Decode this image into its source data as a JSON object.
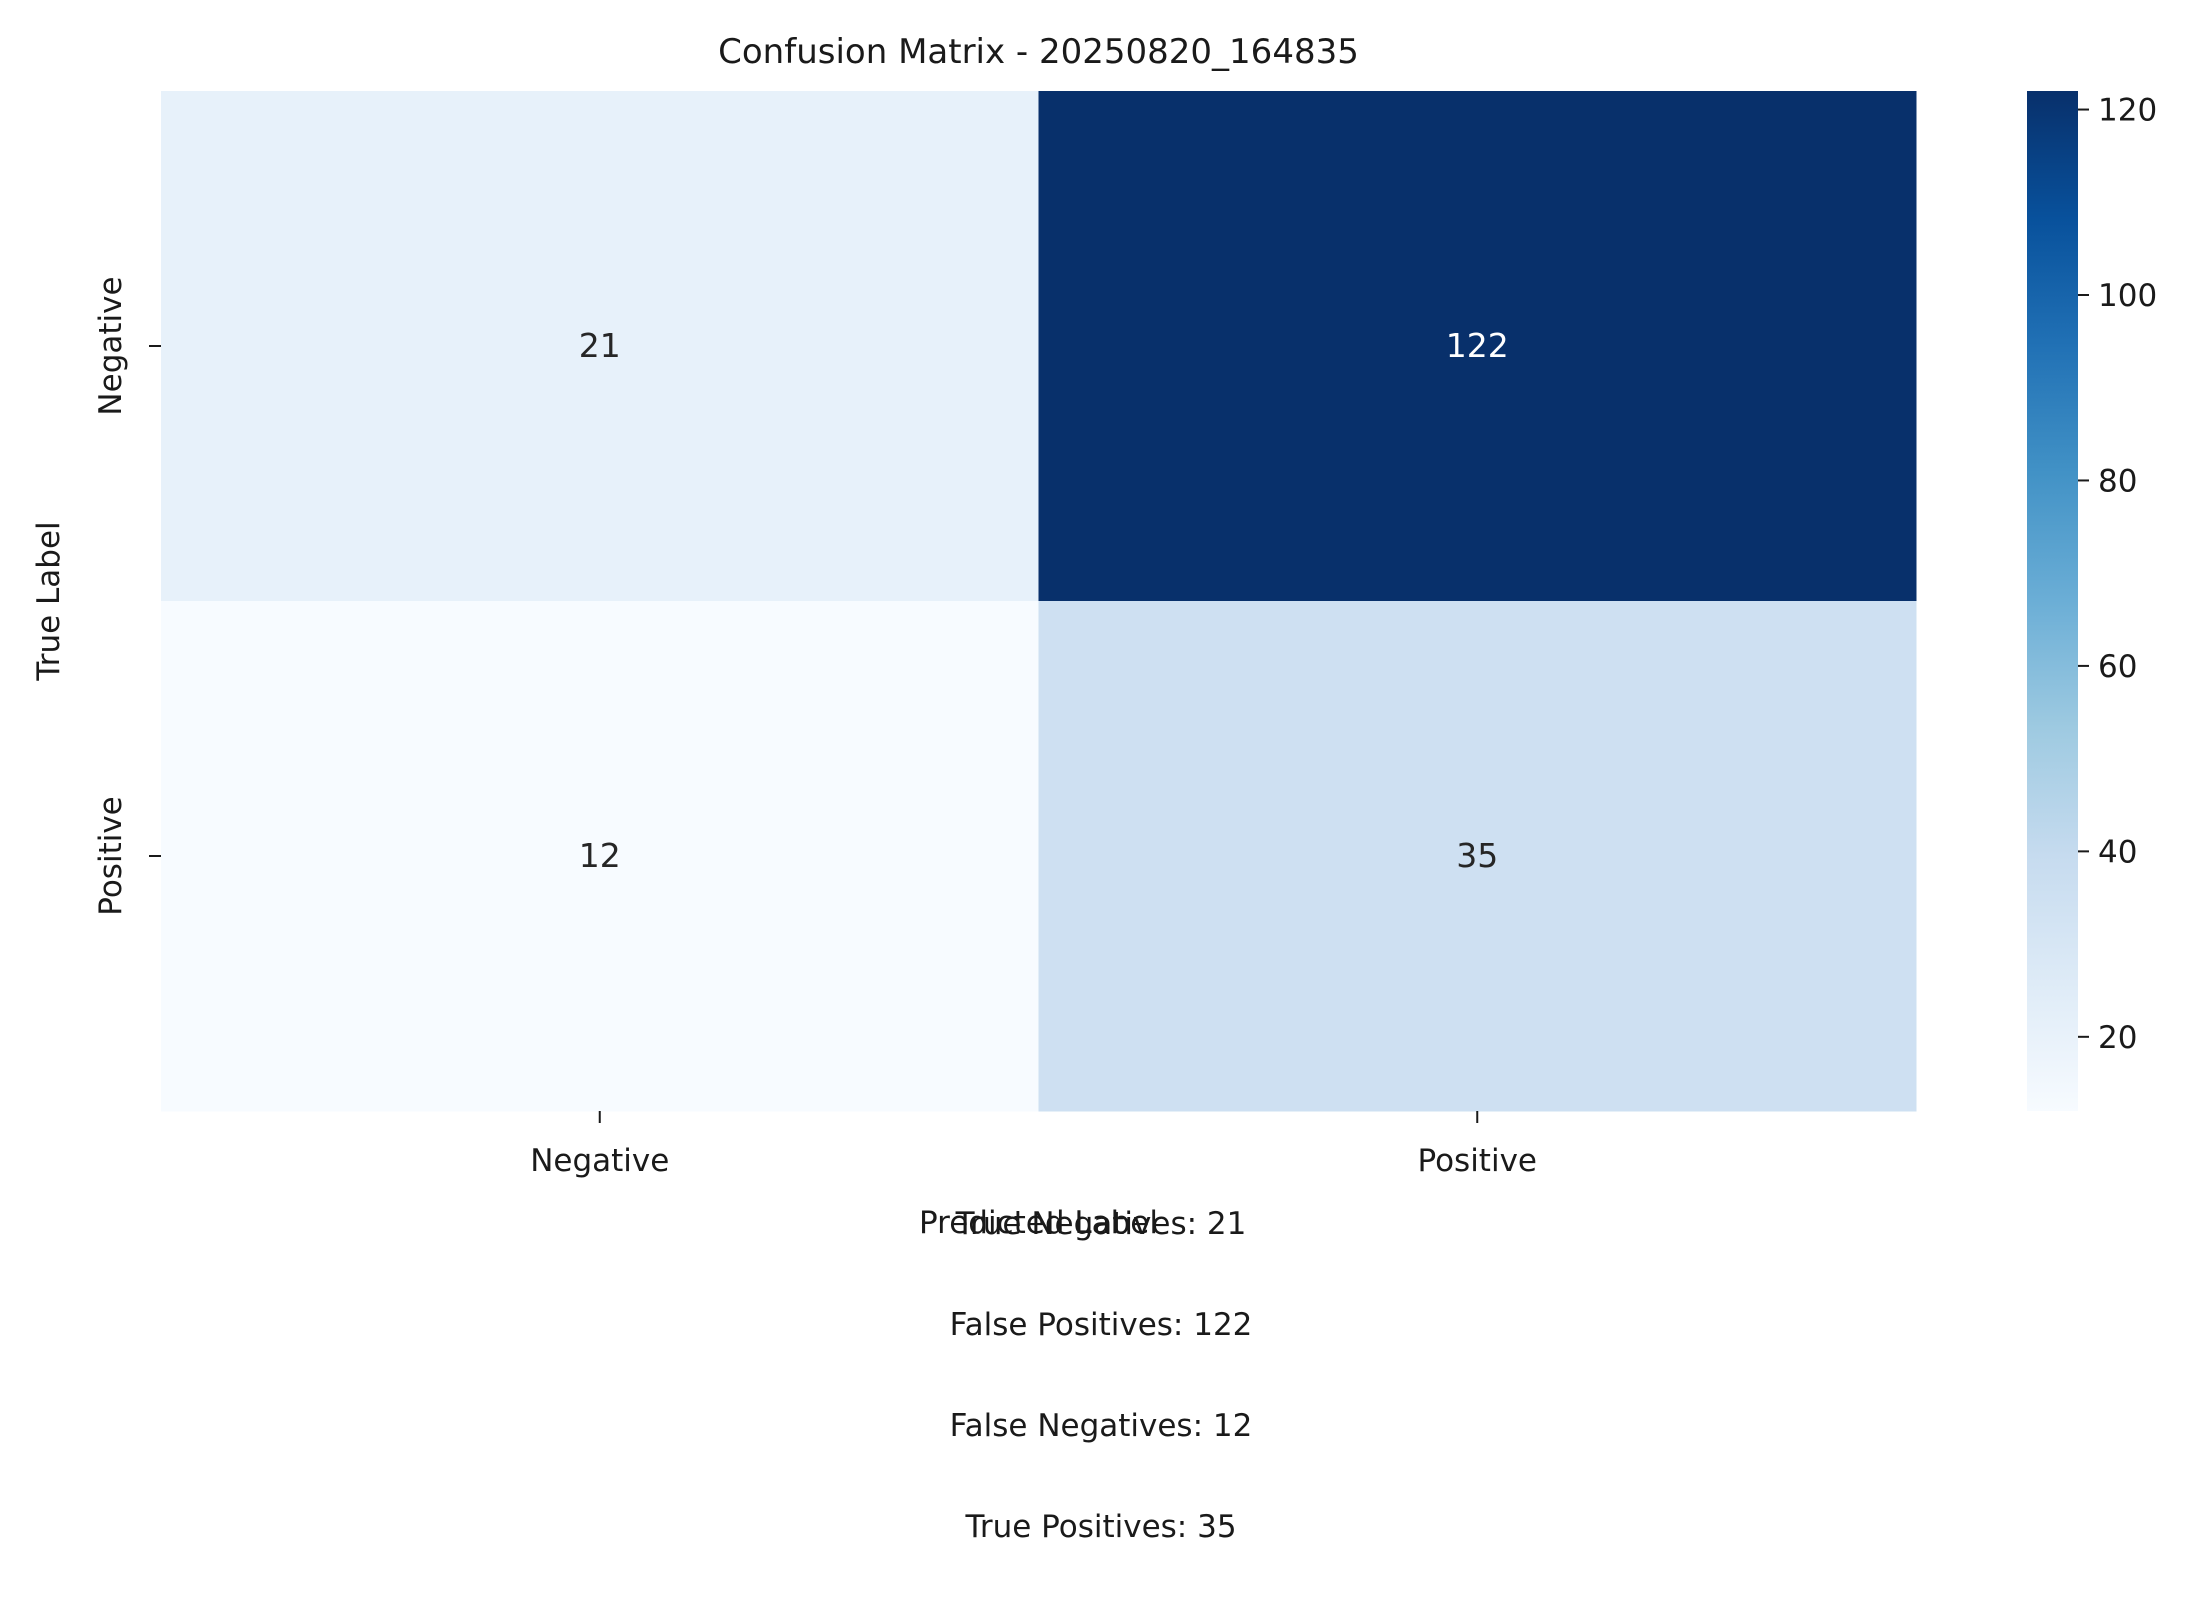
{
  "chart_data": {
    "type": "heatmap",
    "title": "Confusion Matrix - 20250820_164835",
    "xlabel": "Predicted Label",
    "ylabel": "True Label",
    "x_categories": [
      "Negative",
      "Positive"
    ],
    "y_categories": [
      "Negative",
      "Positive"
    ],
    "values": [
      [
        21,
        122
      ],
      [
        12,
        35
      ]
    ],
    "colorbar": {
      "min": 12,
      "max": 122,
      "ticks": [
        20,
        40,
        60,
        80,
        100,
        120
      ],
      "colormap": "Blues",
      "stops": [
        "#f7fbff",
        "#deebf7",
        "#c6dbef",
        "#9ecae1",
        "#6baed6",
        "#4292c6",
        "#2171b5",
        "#08519c",
        "#08306b"
      ]
    },
    "grid": false
  },
  "summary": [
    "True Negatives: 21",
    "False Positives: 122",
    "False Negatives: 12",
    "True Positives: 35"
  ]
}
